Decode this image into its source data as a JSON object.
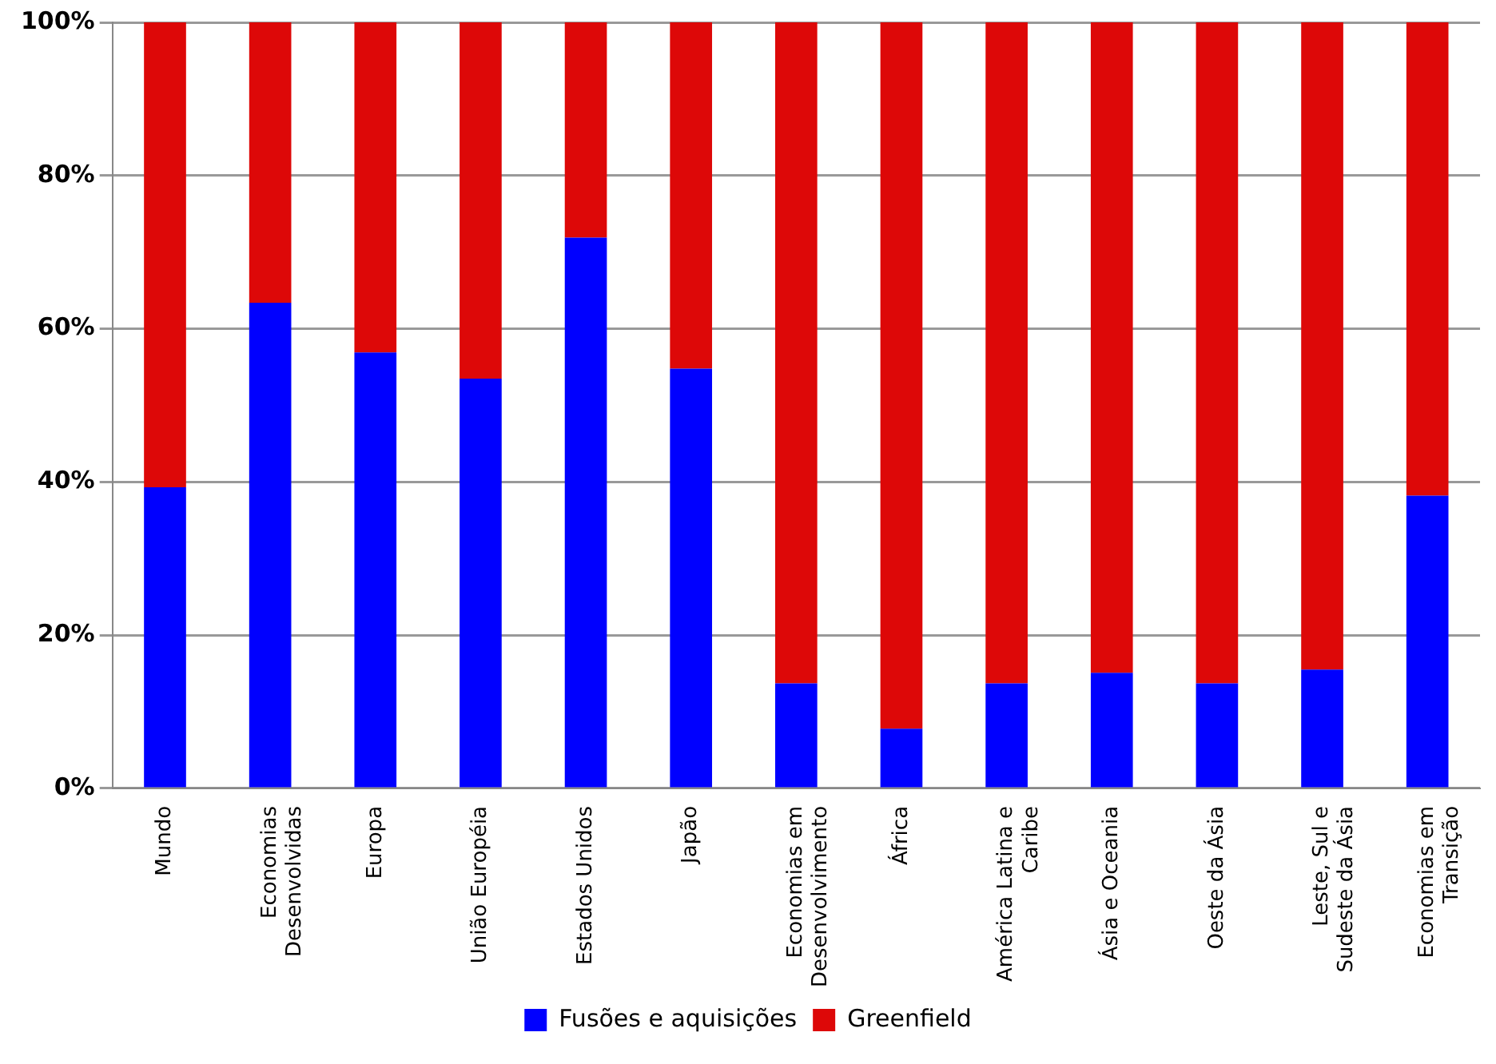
{
  "chart_data": {
    "type": "bar",
    "stacked": true,
    "categories": [
      "Mundo",
      "Economias Desenvolvidas",
      "Europa",
      "União Européia",
      "Estados Unidos",
      "Japão",
      "Economias em Desenvolvimento",
      "África",
      "América Latina e Caribe",
      "Ásia e Oceania",
      "Oeste da Ásia",
      "Leste, Sul e Sudeste da Ásia",
      "Economias em Transição"
    ],
    "series": [
      {
        "name": "Fusões e aquisições",
        "color": "#0000ff",
        "values": [
          39.3,
          63.4,
          56.9,
          53.5,
          71.9,
          54.8,
          13.7,
          7.8,
          13.7,
          15.1,
          13.7,
          15.5,
          38.2
        ]
      },
      {
        "name": "Greenfield",
        "color": "#dd0808",
        "values": [
          60.7,
          36.6,
          43.1,
          46.5,
          28.1,
          45.2,
          86.3,
          92.2,
          86.3,
          84.9,
          86.3,
          84.5,
          61.8
        ]
      }
    ],
    "ylim": [
      0,
      100
    ],
    "yticks": [
      {
        "value": 0,
        "label": "0%"
      },
      {
        "value": 20,
        "label": "20%"
      },
      {
        "value": 40,
        "label": "40%"
      },
      {
        "value": 60,
        "label": "60%"
      },
      {
        "value": 80,
        "label": "80%"
      },
      {
        "value": 100,
        "label": "100%"
      }
    ],
    "grid": "y",
    "legend": "bottom"
  }
}
